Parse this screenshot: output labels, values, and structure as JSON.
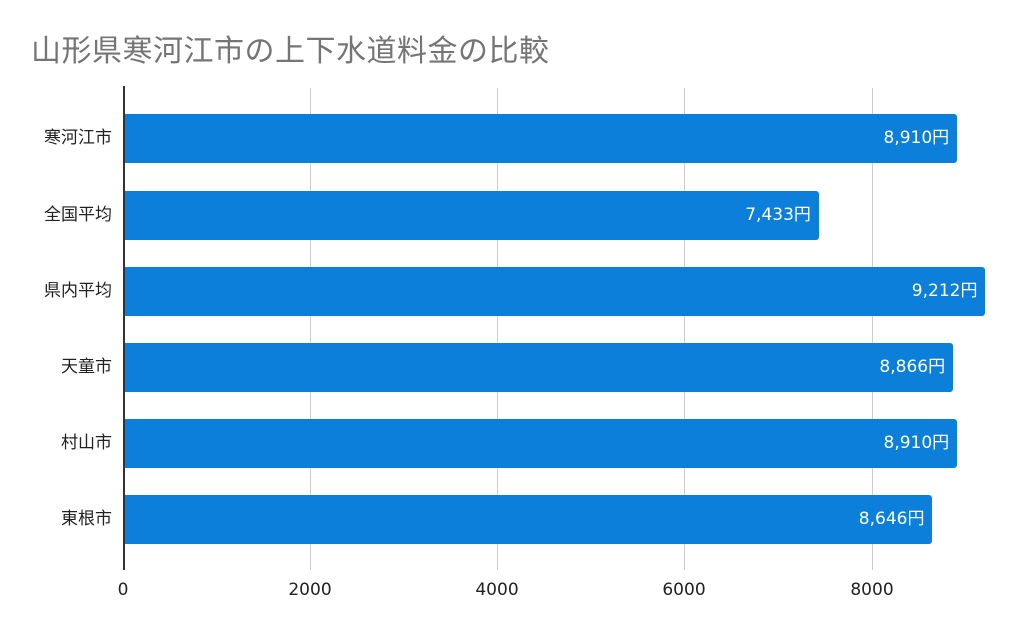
{
  "chart_data": {
    "type": "bar",
    "orientation": "horizontal",
    "title": "山形県寒河江市の上下水道料金の比較",
    "xlabel": "",
    "ylabel": "",
    "categories": [
      "寒河江市",
      "全国平均",
      "県内平均",
      "天童市",
      "村山市",
      "東根市"
    ],
    "values": [
      8910,
      7433,
      9212,
      8866,
      8910,
      8646
    ],
    "value_labels": [
      "8,910円",
      "7,433円",
      "9,212円",
      "8,866円",
      "8,910円",
      "8,646円"
    ],
    "xlim": [
      0,
      9400
    ],
    "xticks": [
      0,
      2000,
      4000,
      6000,
      8000
    ],
    "xtick_labels": [
      "0",
      "2000",
      "4000",
      "6000",
      "8000"
    ],
    "grid": true,
    "legend": null,
    "bar_color": "#0b7fd9"
  },
  "title": "山形県寒河江市の上下水道料金の比較",
  "bars": [
    {
      "label": "寒河江市",
      "value": 8910,
      "value_label": "8,910円"
    },
    {
      "label": "全国平均",
      "value": 7433,
      "value_label": "7,433円"
    },
    {
      "label": "県内平均",
      "value": 9212,
      "value_label": "9,212円"
    },
    {
      "label": "天童市",
      "value": 8866,
      "value_label": "8,866円"
    },
    {
      "label": "村山市",
      "value": 8910,
      "value_label": "8,910円"
    },
    {
      "label": "東根市",
      "value": 8646,
      "value_label": "8,646円"
    }
  ],
  "ticks": [
    "0",
    "2000",
    "4000",
    "6000",
    "8000"
  ]
}
